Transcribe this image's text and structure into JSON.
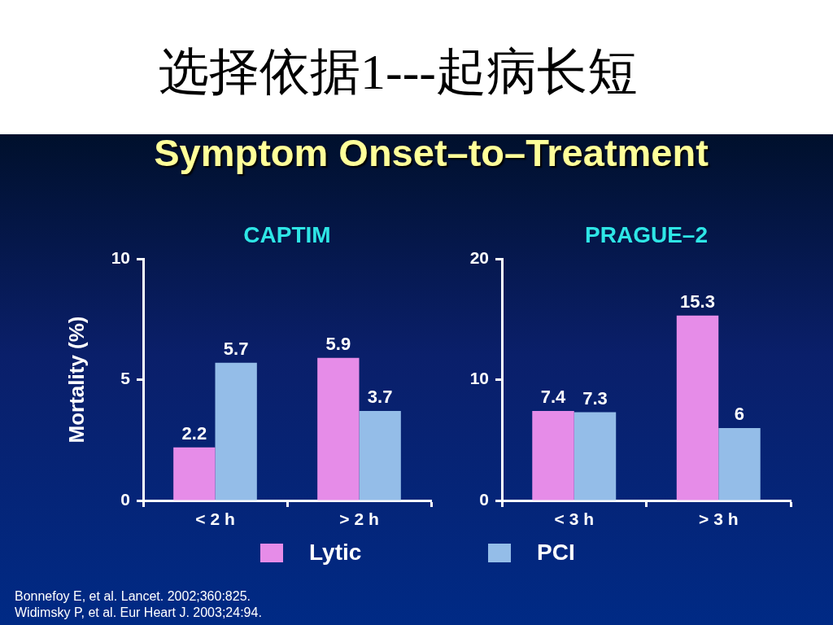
{
  "chart_data": [
    {
      "type": "other",
      "title": "选择依据1---起病长短",
      "subtitle": "Symptom Onset–to–Treatment"
    },
    {
      "type": "bar",
      "title": "CAPTIM",
      "ylabel": "Mortality (%)",
      "categories": [
        "< 2 h",
        "> 2 h"
      ],
      "series": [
        {
          "name": "Lytic",
          "color": "#e68ce8",
          "values": [
            2.2,
            5.9
          ]
        },
        {
          "name": "PCI",
          "color": "#94bde8",
          "values": [
            5.7,
            3.7
          ]
        }
      ],
      "ylim": [
        0,
        10
      ],
      "yticks": [
        0,
        5,
        10
      ],
      "data_labels": true,
      "legend": "bottom"
    },
    {
      "type": "bar",
      "title": "PRAGUE–2",
      "categories": [
        "< 3 h",
        "> 3 h"
      ],
      "series": [
        {
          "name": "Lytic",
          "color": "#e68ce8",
          "values": [
            7.4,
            15.3
          ]
        },
        {
          "name": "PCI",
          "color": "#94bde8",
          "values": [
            7.3,
            6
          ]
        }
      ],
      "ylim": [
        0,
        20
      ],
      "yticks": [
        0,
        10,
        20
      ],
      "data_labels": true
    },
    {
      "type": "other",
      "annotations": [
        "Bonnefoy E, et al. Lancet. 2002;360:825.",
        "Widimsky P, et al. Eur Heart J. 2003;24:94."
      ]
    }
  ]
}
